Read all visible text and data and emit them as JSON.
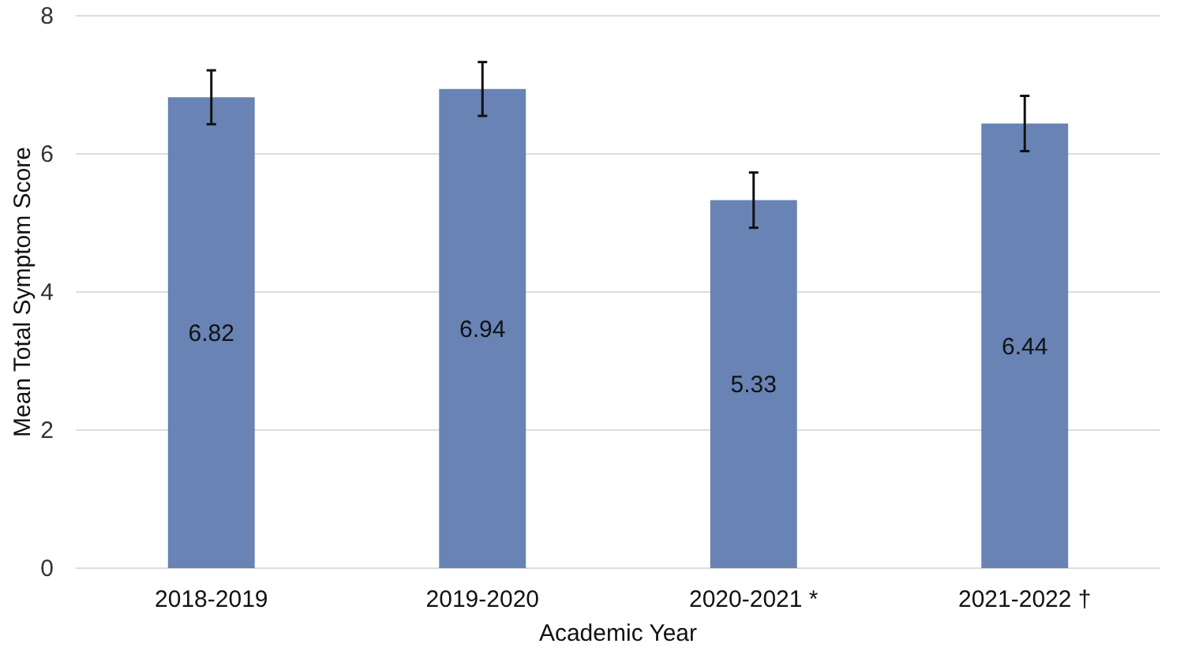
{
  "chart_data": {
    "type": "bar",
    "xlabel": "Academic Year",
    "ylabel": "Mean Total Symptom Score",
    "categories": [
      "2018-2019",
      "2019-2020",
      "2020-2021 *",
      "2021-2022 †"
    ],
    "values": [
      6.82,
      6.94,
      5.33,
      6.44
    ],
    "errors": [
      0.39,
      0.39,
      0.4,
      0.4
    ],
    "color": "#6883b4",
    "ylim": [
      0,
      8
    ],
    "yticks": [
      0,
      2,
      4,
      6,
      8
    ],
    "grid": "y",
    "data_labels": true
  }
}
